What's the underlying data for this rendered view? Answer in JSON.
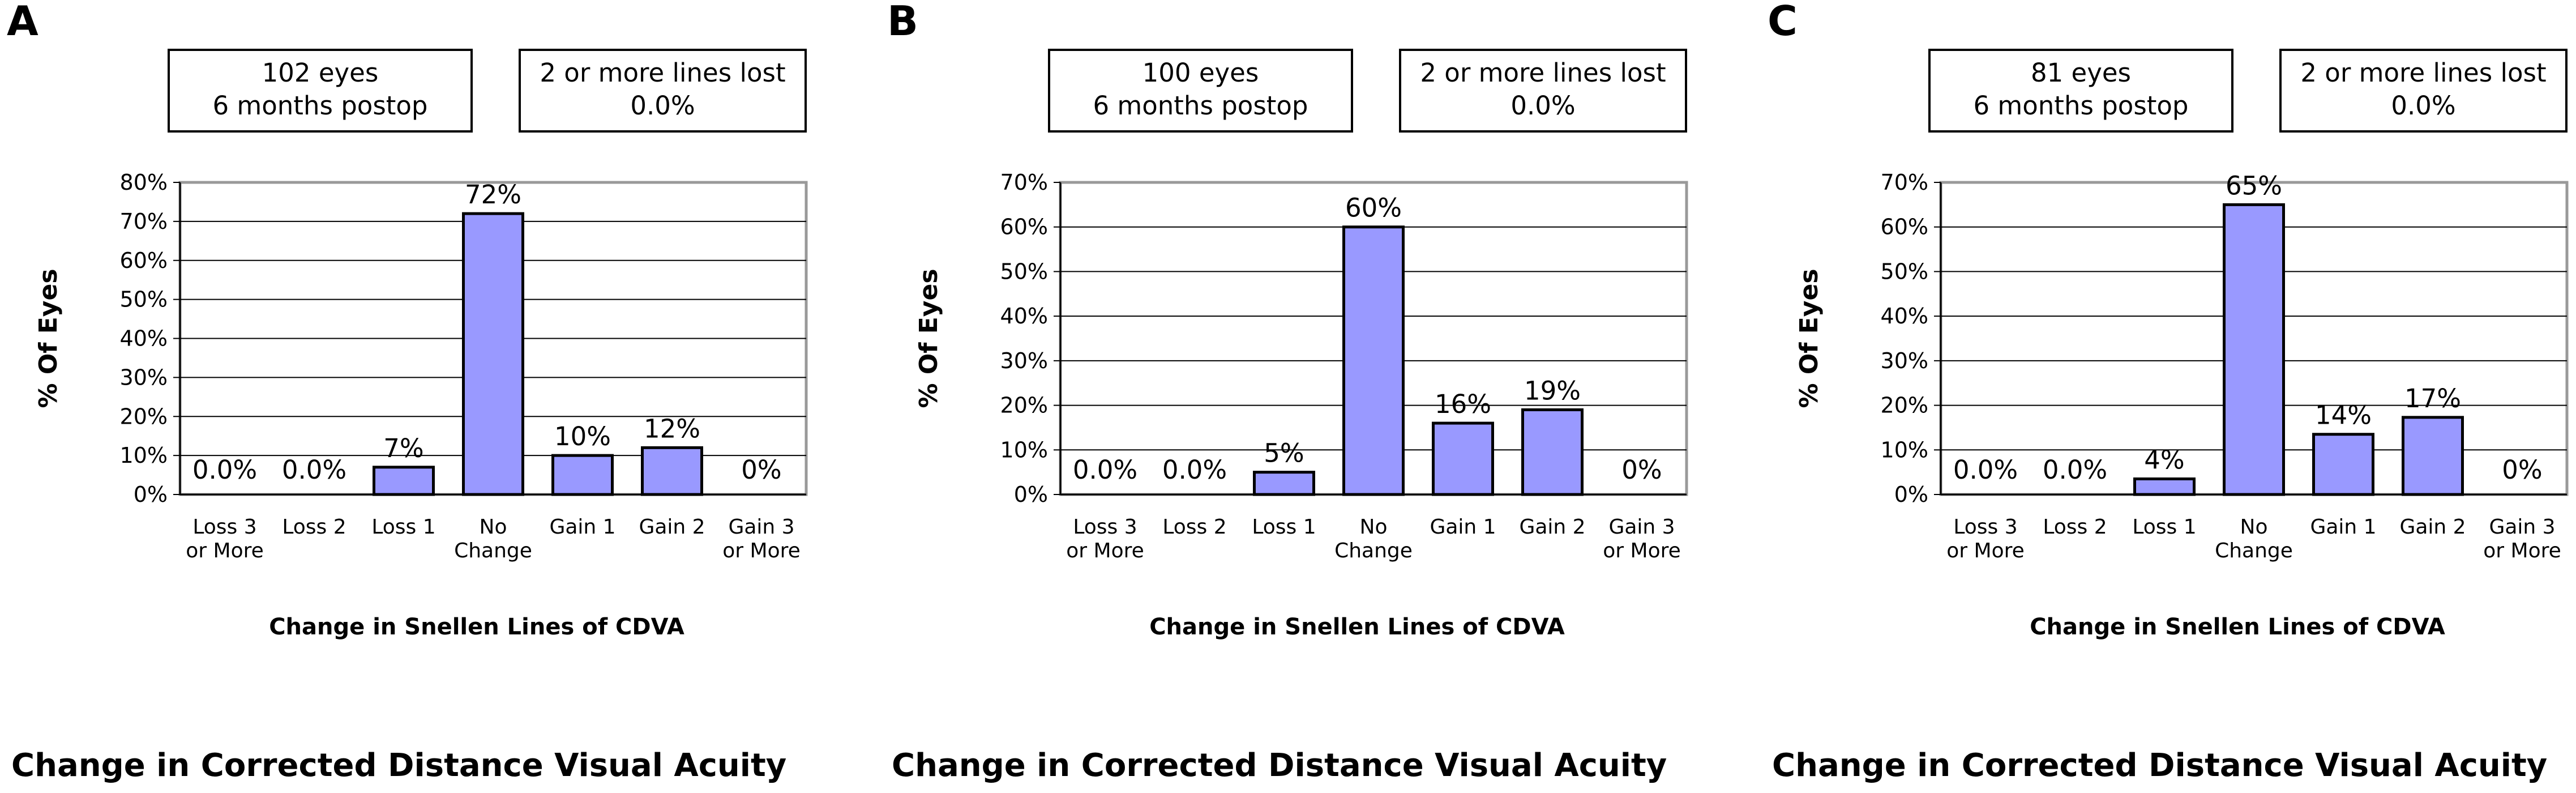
{
  "chart_data": [
    {
      "type": "bar",
      "panel": "A",
      "info_boxes": [
        [
          "102 eyes",
          "6 months postop"
        ],
        [
          "2 or more lines lost",
          "0.0%"
        ]
      ],
      "categories": [
        [
          "Loss 3",
          "or More"
        ],
        [
          "Loss 2"
        ],
        [
          "Loss 1"
        ],
        [
          "No",
          "Change"
        ],
        [
          "Gain 1"
        ],
        [
          "Gain 2"
        ],
        [
          "Gain 3",
          "or More"
        ]
      ],
      "values": [
        0,
        0,
        7,
        72,
        10,
        12,
        0
      ],
      "value_labels": [
        "0.0%",
        "0.0%",
        "7%",
        "72%",
        "10%",
        "12%",
        "0%"
      ],
      "xlabel": "Change in Snellen Lines of CDVA",
      "ylabel": "% Of Eyes",
      "ylim": [
        0,
        80
      ],
      "yticks": [
        0,
        10,
        20,
        30,
        40,
        50,
        60,
        70,
        80
      ],
      "ytick_labels": [
        "0%",
        "10%",
        "20%",
        "30%",
        "40%",
        "50%",
        "60%",
        "70%",
        "80%"
      ],
      "caption": "Change in Corrected Distance Visual Acuity",
      "bar_color": "#9999ff"
    },
    {
      "type": "bar",
      "panel": "B",
      "info_boxes": [
        [
          "100 eyes",
          "6 months postop"
        ],
        [
          "2 or more lines lost",
          "0.0%"
        ]
      ],
      "categories": [
        [
          "Loss 3",
          "or More"
        ],
        [
          "Loss 2"
        ],
        [
          "Loss 1"
        ],
        [
          "No",
          "Change"
        ],
        [
          "Gain 1"
        ],
        [
          "Gain 2"
        ],
        [
          "Gain 3",
          "or More"
        ]
      ],
      "values": [
        0,
        0,
        5,
        60,
        16,
        19,
        0
      ],
      "value_labels": [
        "0.0%",
        "0.0%",
        "5%",
        "60%",
        "16%",
        "19%",
        "0%"
      ],
      "xlabel": "Change in Snellen Lines of CDVA",
      "ylabel": "% Of Eyes",
      "ylim": [
        0,
        70
      ],
      "yticks": [
        0,
        10,
        20,
        30,
        40,
        50,
        60,
        70
      ],
      "ytick_labels": [
        "0%",
        "10%",
        "20%",
        "30%",
        "40%",
        "50%",
        "60%",
        "70%"
      ],
      "caption": "Change in Corrected Distance Visual Acuity",
      "bar_color": "#9999ff"
    },
    {
      "type": "bar",
      "panel": "C",
      "info_boxes": [
        [
          "81 eyes",
          "6 months postop"
        ],
        [
          "2 or more lines lost",
          "0.0%"
        ]
      ],
      "categories": [
        [
          "Loss 3",
          "or More"
        ],
        [
          "Loss 2"
        ],
        [
          "Loss 1"
        ],
        [
          "No",
          "Change"
        ],
        [
          "Gain 1"
        ],
        [
          "Gain 2"
        ],
        [
          "Gain 3",
          "or More"
        ]
      ],
      "values": [
        0,
        0,
        3.5,
        65,
        13.5,
        17.3,
        0
      ],
      "value_labels": [
        "0.0%",
        "0.0%",
        "4%",
        "65%",
        "14%",
        "17%",
        "0%"
      ],
      "xlabel": "Change in Snellen Lines of CDVA",
      "ylabel": "% Of Eyes",
      "ylim": [
        0,
        70
      ],
      "yticks": [
        0,
        10,
        20,
        30,
        40,
        50,
        60,
        70
      ],
      "ytick_labels": [
        "0%",
        "10%",
        "20%",
        "30%",
        "40%",
        "50%",
        "60%",
        "70%"
      ],
      "caption": "Change in Corrected Distance Visual Acuity",
      "bar_color": "#9999ff"
    }
  ]
}
